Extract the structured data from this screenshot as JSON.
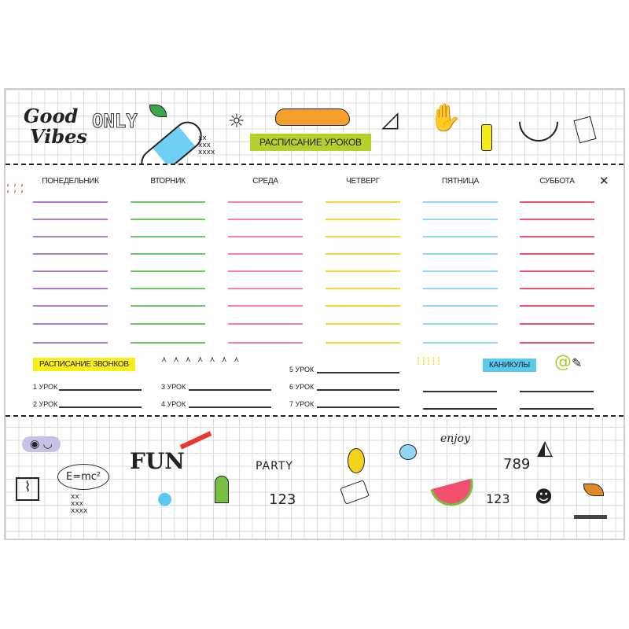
{
  "header": {
    "title": "РАСПИСАНИЕ УРОКОВ",
    "slogan_line1": "Good",
    "slogan_line2": "Vibes",
    "slogan_word": "ONLY"
  },
  "days": [
    {
      "label": "ПОНЕДЕЛЬНИК",
      "color": "#b07cc6"
    },
    {
      "label": "ВТОРНИК",
      "color": "#6cc46a"
    },
    {
      "label": "СРЕДА",
      "color": "#f77fb0"
    },
    {
      "label": "ЧЕТВЕРГ",
      "color": "#f8d43a"
    },
    {
      "label": "ПЯТНИЦА",
      "color": "#8fd8f5"
    },
    {
      "label": "СУББОТА",
      "color": "#f0506e"
    }
  ],
  "bells": {
    "title": "РАСПИСАНИЕ ЗВОНКОВ",
    "title_color": "#f7ef1c",
    "lessons": [
      "1 УРОК",
      "2 УРОК",
      "3 УРОК",
      "4 УРОК",
      "5 УРОК",
      "6 УРОК",
      "7 УРОК"
    ]
  },
  "holidays": {
    "title": "КАНИКУЛЫ",
    "title_color": "#5bc8f0"
  },
  "doodles": {
    "fun": "FUN",
    "formula": "E=mc²",
    "party": "PARTY",
    "n123": "123",
    "n123b": "123",
    "n789": "789",
    "enjoy": "enjoy"
  }
}
